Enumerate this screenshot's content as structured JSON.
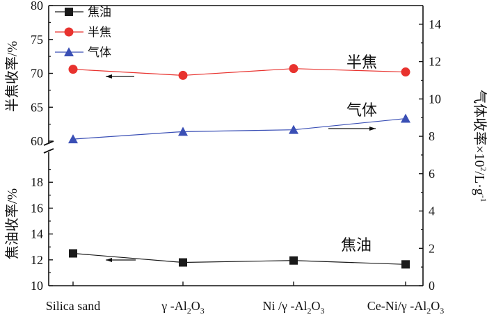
{
  "chart_data": {
    "type": "line",
    "categories": [
      "Silica sand",
      "γ-Al2O3",
      "Ni /γ-Al2O3",
      "Ce-Ni/γ-Al2O3"
    ],
    "categories_display": [
      {
        "main": "Silica sand",
        "parts": []
      },
      {
        "prefix": "γ -Al",
        "sub1": "2",
        "mid": "O",
        "sub2": "3"
      },
      {
        "prefix": "Ni /γ -Al",
        "sub1": "2",
        "mid": "O",
        "sub2": "3"
      },
      {
        "prefix": "Ce-Ni/γ -Al",
        "sub1": "2",
        "mid": "O",
        "sub2": "3"
      }
    ],
    "left_axis": {
      "broken": true,
      "upper": {
        "label": "半焦收率/%",
        "ylim": [
          60,
          80
        ],
        "ticks": [
          60,
          65,
          70,
          75,
          80
        ]
      },
      "lower": {
        "label": "焦油收率/%",
        "ylim": [
          10,
          20
        ],
        "ticks": [
          10,
          12,
          14,
          16,
          18
        ]
      }
    },
    "right_axis": {
      "label_main": "气体收率×10",
      "label_sup": "2",
      "label_unit": "/L·g",
      "label_sup2": "-1",
      "ylim": [
        0,
        15
      ],
      "ticks": [
        0,
        2,
        4,
        6,
        8,
        10,
        12,
        14
      ]
    },
    "series": [
      {
        "name": "焦油",
        "axis": "left-lower",
        "marker": "square",
        "color": "#1a1a1a",
        "values": [
          12.5,
          11.8,
          11.95,
          11.65
        ]
      },
      {
        "name": "半焦",
        "axis": "left-upper",
        "marker": "circle",
        "color": "#e8322e",
        "values": [
          70.6,
          69.7,
          70.7,
          70.2
        ]
      },
      {
        "name": "气体",
        "axis": "right",
        "marker": "triangle",
        "color": "#3a4fb5",
        "values": [
          7.85,
          8.25,
          8.35,
          8.95
        ]
      }
    ],
    "annotations": [
      "半焦",
      "气体",
      "焦油"
    ],
    "legend_position": "top-left"
  }
}
